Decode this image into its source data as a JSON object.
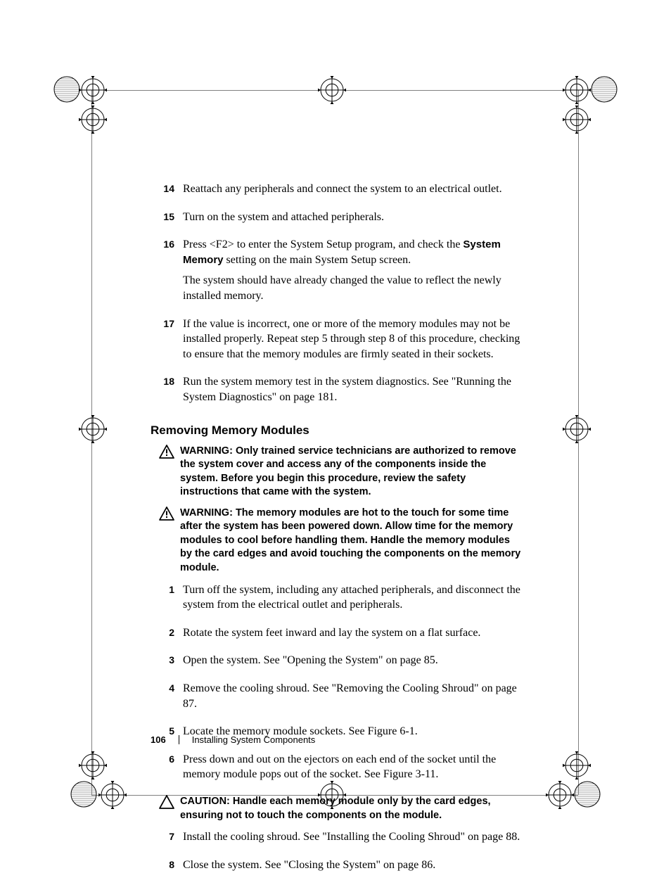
{
  "page_number": "106",
  "footer_title": "Installing System Components",
  "section_heading": "Removing Memory Modules",
  "steps_top": [
    {
      "num": "14",
      "paras": [
        "Reattach any peripherals and connect the system to an electrical outlet."
      ]
    },
    {
      "num": "15",
      "paras": [
        "Turn on the system and attached peripherals."
      ]
    },
    {
      "num": "16",
      "paras": [
        "Press <F2> to enter the System Setup program, and check the <b>System Memory</b> setting on the main System Setup screen.",
        "The system should have already changed the value to reflect the newly installed memory."
      ]
    },
    {
      "num": "17",
      "paras": [
        "If the value is incorrect, one or more of the memory modules may not be installed properly. Repeat step 5 through step 8 of this procedure, checking to ensure that the memory modules are firmly seated in their sockets."
      ]
    },
    {
      "num": "18",
      "paras": [
        "Run the system memory test in the system diagnostics. See \"Running the System Diagnostics\" on page 181."
      ]
    }
  ],
  "notices": [
    {
      "icon": "warning",
      "label": "WARNING:",
      "text": " Only trained service technicians are authorized to remove the system cover and access any of the components inside the system. Before you begin this procedure, review the safety instructions that came with the system."
    },
    {
      "icon": "warning",
      "label": "WARNING:",
      "text": " The memory modules are hot to the touch for some time after the system has been powered down. Allow time for the memory modules to cool before handling them. Handle the memory modules by the card edges and avoid touching the components on the memory module."
    }
  ],
  "steps_bottom_a": [
    {
      "num": "1",
      "paras": [
        "Turn off the system, including any attached peripherals, and disconnect the system from the electrical outlet and peripherals."
      ]
    },
    {
      "num": "2",
      "paras": [
        "Rotate the system feet inward and lay the system on a flat surface."
      ]
    },
    {
      "num": "3",
      "paras": [
        "Open the system. See \"Opening the System\" on page 85."
      ]
    },
    {
      "num": "4",
      "paras": [
        "Remove the cooling shroud. See \"Removing the Cooling Shroud\" on page 87."
      ]
    },
    {
      "num": "5",
      "paras": [
        "Locate the memory module sockets. See Figure 6-1."
      ]
    },
    {
      "num": "6",
      "paras": [
        "Press down and out on the ejectors on each end of the socket until the memory module pops out of the socket. See Figure 3-11."
      ]
    }
  ],
  "caution": {
    "icon": "caution",
    "label": "CAUTION:",
    "text": " Handle each memory module only by the card edges, ensuring not to touch the components on the module."
  },
  "steps_bottom_b": [
    {
      "num": "7",
      "paras": [
        "Install the cooling shroud. See \"Installing the Cooling Shroud\" on page 88."
      ]
    },
    {
      "num": "8",
      "paras": [
        "Close the system. See \"Closing the System\" on page 86."
      ]
    }
  ],
  "colors": {
    "text": "#000000",
    "background": "#ffffff"
  },
  "marks": {
    "corner_small_r": 18,
    "corner_big_r": 20,
    "edge_r": 16,
    "line_stroke": "#000000",
    "fill_hatch": "#555555"
  }
}
